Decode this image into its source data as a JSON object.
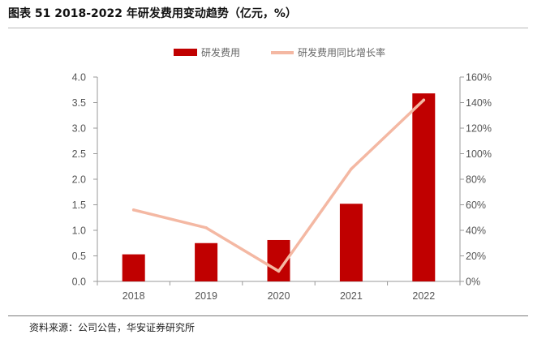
{
  "title": "图表 51 2018-2022 年研发费用变动趋势（亿元，%）",
  "source": "资料来源：公司公告，华安证券研究所",
  "colors": {
    "bar": "#c00000",
    "line": "#f4b8a3",
    "axis": "#999999"
  },
  "chart_data": {
    "type": "bar",
    "categories": [
      "2018",
      "2019",
      "2020",
      "2021",
      "2022"
    ],
    "series": [
      {
        "name": "研发费用",
        "type": "bar",
        "axis": "left",
        "values": [
          0.53,
          0.75,
          0.81,
          1.52,
          3.68
        ]
      },
      {
        "name": "研发费用同比增长率",
        "type": "line",
        "axis": "right",
        "values": [
          56,
          42,
          8,
          88,
          142
        ]
      }
    ],
    "y_left": {
      "min": 0,
      "max": 4.0,
      "ticks": [
        "0.0",
        "0.5",
        "1.0",
        "1.5",
        "2.0",
        "2.5",
        "3.0",
        "3.5",
        "4.0"
      ]
    },
    "y_right": {
      "min": 0,
      "max": 160,
      "ticks": [
        "0%",
        "20%",
        "40%",
        "60%",
        "80%",
        "100%",
        "120%",
        "140%",
        "160%"
      ]
    },
    "legend_position": "top-center",
    "grid": false
  }
}
